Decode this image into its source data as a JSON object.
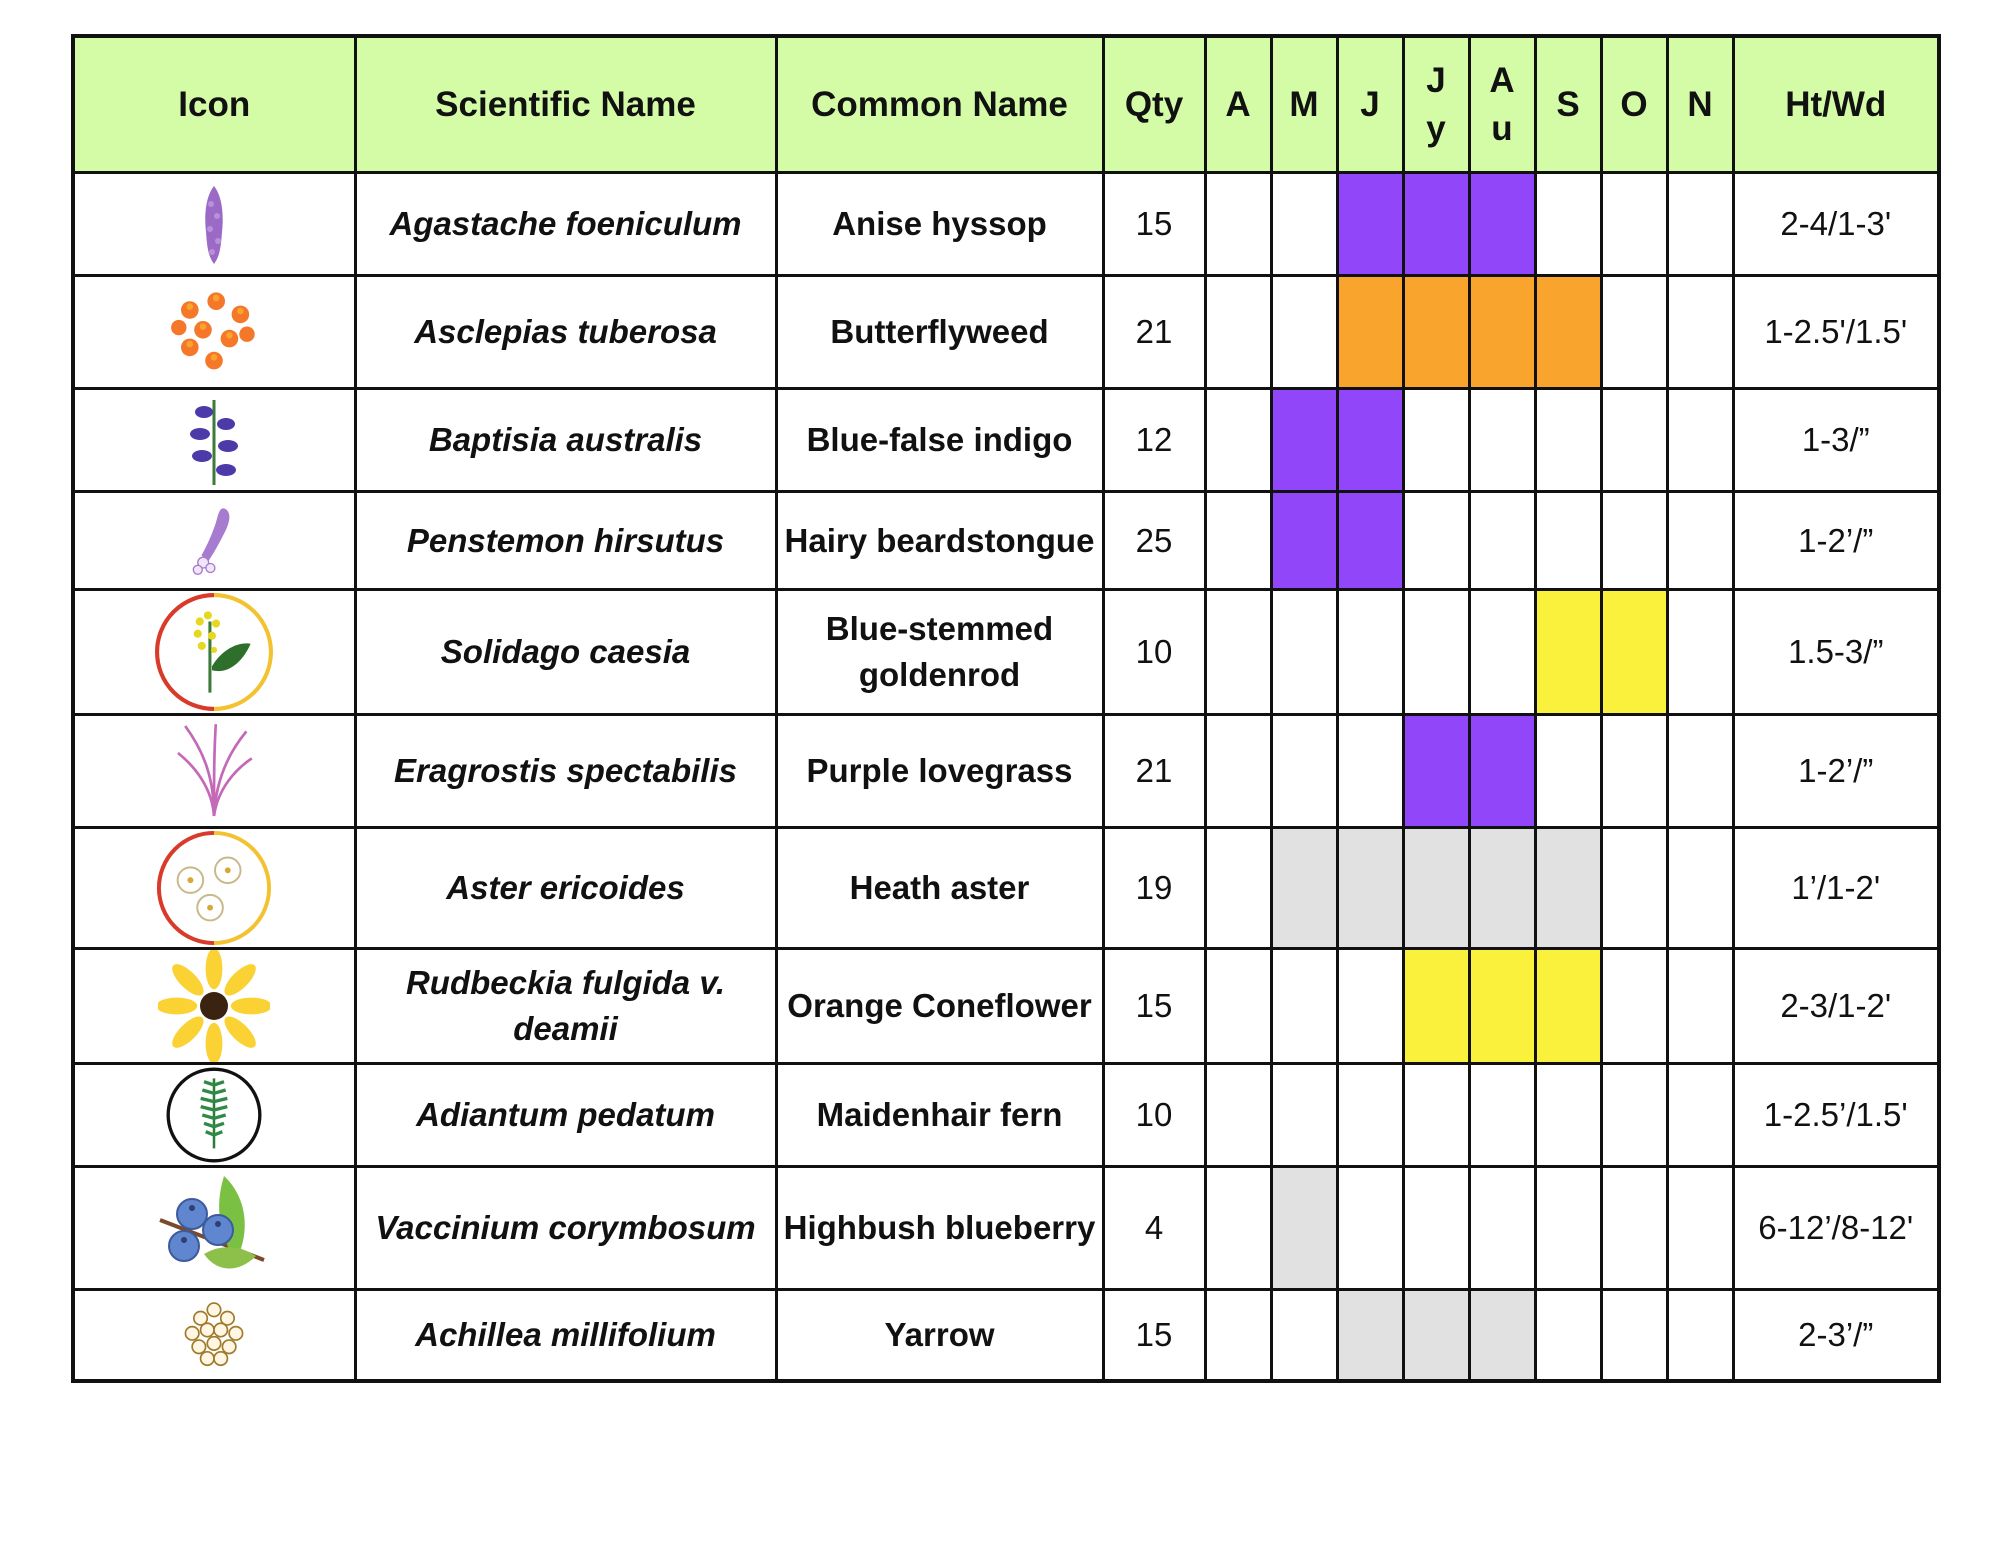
{
  "colors": {
    "header_bg": "#d4fca6",
    "purple": "#9146f9",
    "orange": "#f9a52d",
    "yellow": "#faf13c",
    "gray": "#e1e1e1",
    "border": "#111111"
  },
  "header": {
    "icon": "Icon",
    "scientific": "Scientific Name",
    "common": "Common Name",
    "qty": "Qty",
    "months": [
      [
        "A"
      ],
      [
        "M"
      ],
      [
        "J"
      ],
      [
        "J",
        "y"
      ],
      [
        "A",
        "u"
      ],
      [
        "S"
      ],
      [
        "O"
      ],
      [
        "N"
      ]
    ],
    "ht_wd": "Ht/Wd"
  },
  "rows": [
    {
      "icon": "agastache-spike-icon",
      "sci": "Agastache foeniculum",
      "common": "Anise hyssop",
      "qty": "15",
      "hw": "2-4/1-3'",
      "bloom": [
        null,
        null,
        "purple",
        "purple",
        "purple",
        null,
        null,
        null
      ]
    },
    {
      "icon": "butterflyweed-flowers-icon",
      "sci": "Asclepias tuberosa",
      "common": "Butterflyweed",
      "qty": "21",
      "hw": "1-2.5'/1.5'",
      "bloom": [
        null,
        null,
        "orange",
        "orange",
        "orange",
        "orange",
        null,
        null
      ]
    },
    {
      "icon": "baptisia-stem-icon",
      "sci": "Baptisia australis",
      "common": "Blue-false indigo",
      "qty": "12",
      "hw": "1-3/”",
      "bloom": [
        null,
        "purple",
        "purple",
        null,
        null,
        null,
        null,
        null
      ]
    },
    {
      "icon": "penstemon-flower-icon",
      "sci": "Penstemon hirsutus",
      "common": "Hairy beardstongue",
      "qty": "25",
      "hw": "1-2’/”",
      "bloom": [
        null,
        "purple",
        "purple",
        null,
        null,
        null,
        null,
        null
      ]
    },
    {
      "icon": "goldenrod-circle-icon",
      "sci": "Solidago caesia",
      "common": "Blue-stemmed goldenrod",
      "qty": "10",
      "hw": "1.5-3/”",
      "bloom": [
        null,
        null,
        null,
        null,
        null,
        "yellow",
        "yellow",
        null
      ]
    },
    {
      "icon": "lovegrass-icon",
      "sci": "Eragrostis spectabilis",
      "common": "Purple lovegrass",
      "qty": "21",
      "hw": "1-2’/”",
      "bloom": [
        null,
        null,
        null,
        "purple",
        "purple",
        null,
        null,
        null
      ]
    },
    {
      "icon": "aster-circle-icon",
      "sci": "Aster ericoides",
      "common": "Heath aster",
      "qty": "19",
      "hw": "1’/1-2'",
      "bloom": [
        null,
        "gray",
        "gray",
        "gray",
        "gray",
        "gray",
        null,
        null
      ]
    },
    {
      "icon": "coneflower-icon",
      "sci": "Rudbeckia fulgida v. deamii",
      "common": "Orange Coneflower",
      "qty": "15",
      "hw": "2-3/1-2'",
      "bloom": [
        null,
        null,
        null,
        "yellow",
        "yellow",
        "yellow",
        null,
        null
      ]
    },
    {
      "icon": "fern-circle-icon",
      "sci": "Adiantum pedatum",
      "common": "Maidenhair fern",
      "qty": "10",
      "hw": "1-2.5’/1.5'",
      "bloom": [
        null,
        null,
        null,
        null,
        null,
        null,
        null,
        null
      ]
    },
    {
      "icon": "blueberry-icon",
      "sci": "Vaccinium corymbosum",
      "common": "Highbush blueberry",
      "qty": "4",
      "hw": "6-12’/8-12'",
      "bloom": [
        null,
        "gray",
        null,
        null,
        null,
        null,
        null,
        null
      ]
    },
    {
      "icon": "yarrow-icon",
      "sci": "Achillea millifolium",
      "common": "Yarrow",
      "qty": "15",
      "hw": "2-3’/”",
      "bloom": [
        null,
        null,
        "gray",
        "gray",
        "gray",
        null,
        null,
        null
      ]
    }
  ]
}
